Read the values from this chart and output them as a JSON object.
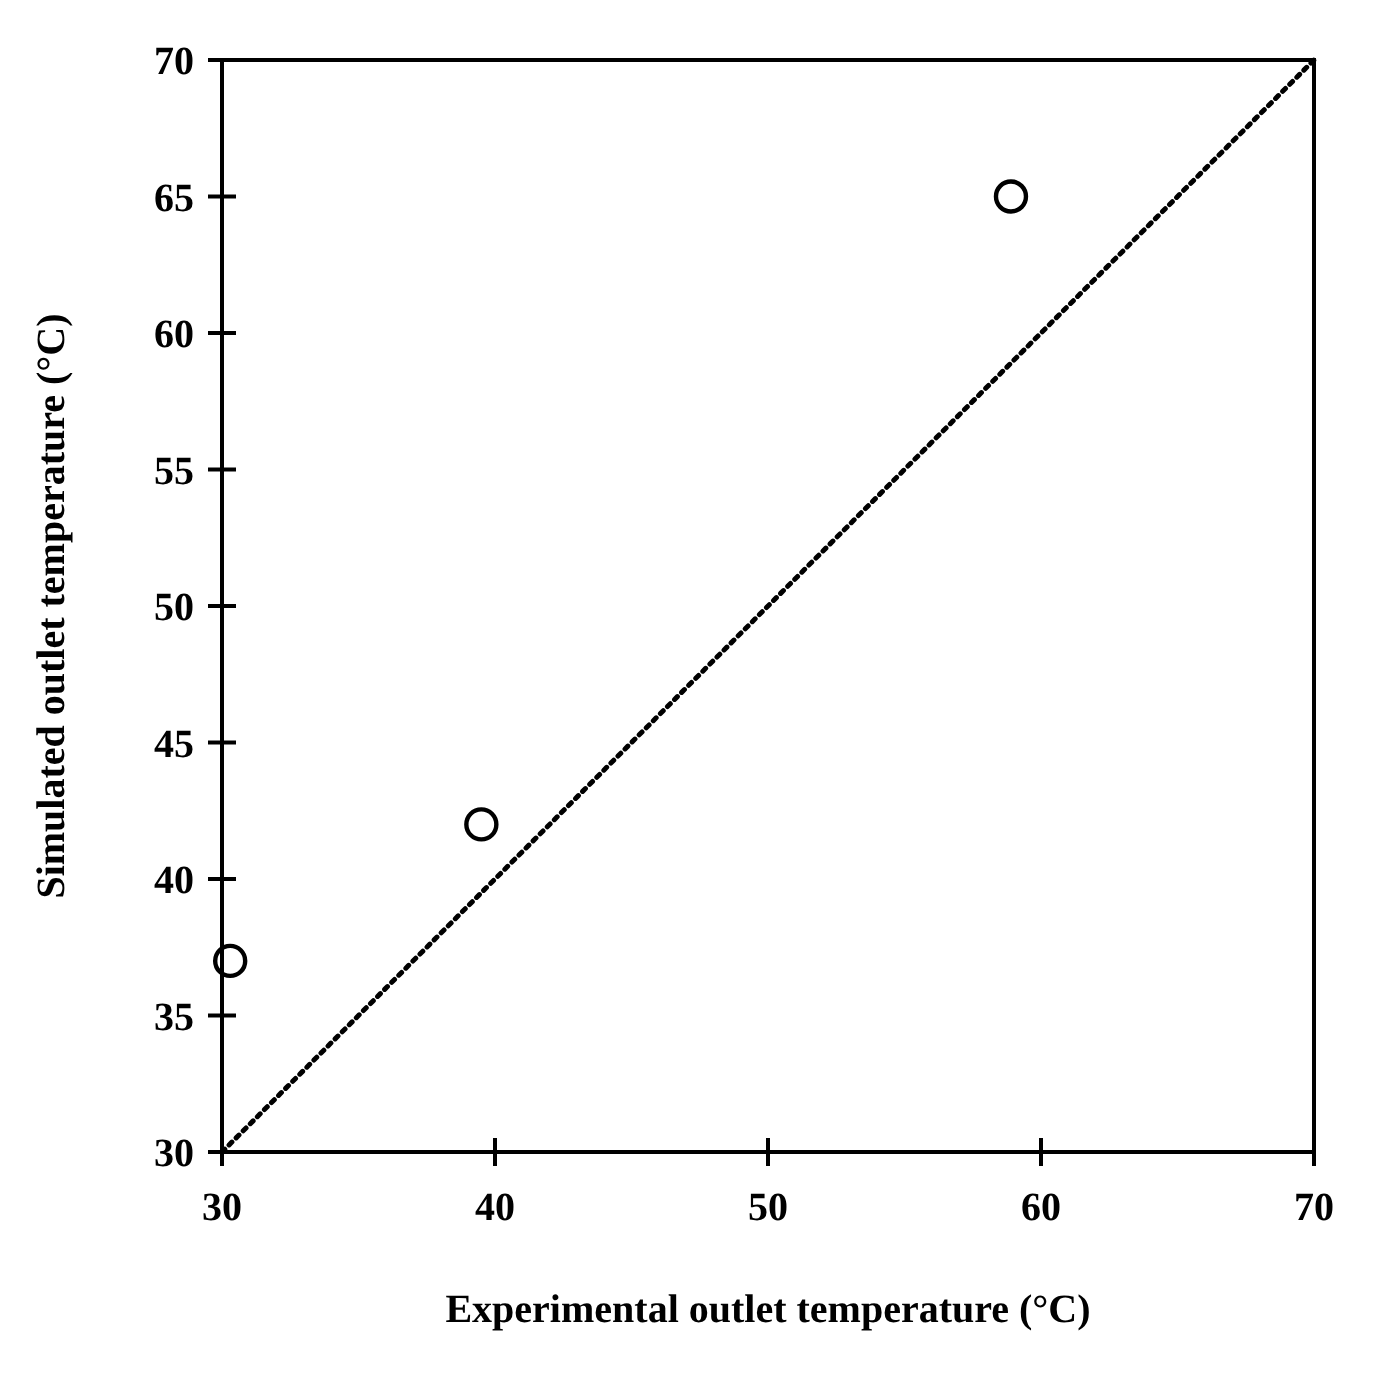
{
  "chart_data": {
    "type": "scatter",
    "xlabel": "Experimental outlet temperature (°C)",
    "ylabel": "Simulated outlet temperature (°C)",
    "xlim": [
      30,
      70
    ],
    "ylim": [
      30,
      70
    ],
    "xticks": [
      30,
      40,
      50,
      60,
      70
    ],
    "yticks": [
      30,
      35,
      40,
      45,
      50,
      55,
      60,
      65,
      70
    ],
    "grid": false,
    "series": [
      {
        "color": "#000000",
        "marker": "circle",
        "x": [
          30.3,
          39.5,
          58.9
        ],
        "values": [
          37,
          42,
          65
        ]
      },
      {
        "type": "line",
        "color": "#000000",
        "line_style": "dotted",
        "x": [
          30,
          70
        ],
        "values": [
          30,
          70
        ]
      }
    ]
  }
}
